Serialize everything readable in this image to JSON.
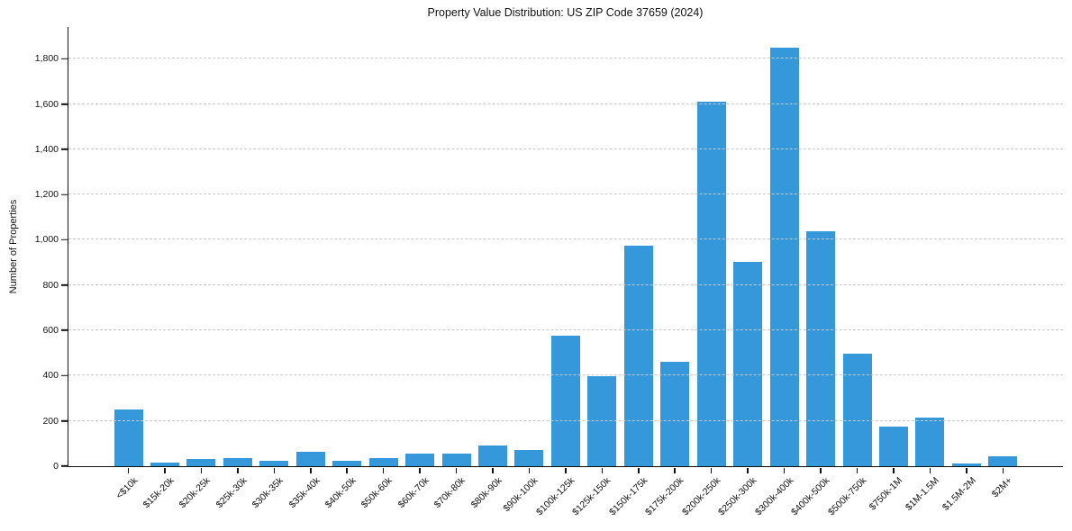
{
  "chart_data": {
    "type": "bar",
    "title": "Property Value Distribution: US ZIP Code 37659 (2024)",
    "xlabel": "",
    "ylabel": "Number of Properties",
    "categories": [
      "<$10k",
      "$15k-20k",
      "$20k-25k",
      "$25k-30k",
      "$30k-35k",
      "$35k-40k",
      "$40k-50k",
      "$50k-60k",
      "$60k-70k",
      "$70k-80k",
      "$80k-90k",
      "$90k-100k",
      "$100k-125k",
      "$125k-150k",
      "$150k-175k",
      "$175k-200k",
      "$200k-250k",
      "$250k-300k",
      "$300k-400k",
      "$400k-500k",
      "$500k-750k",
      "$750k-1M",
      "$1M-1.5M",
      "$1.5M-2M",
      "$2M+"
    ],
    "values": [
      252,
      15,
      30,
      35,
      22,
      62,
      22,
      35,
      55,
      57,
      92,
      70,
      575,
      398,
      975,
      462,
      1610,
      903,
      1848,
      1038,
      497,
      176,
      216,
      13,
      42
    ],
    "yticks": [
      0,
      200,
      400,
      600,
      800,
      1000,
      1200,
      1400,
      1600,
      1800
    ],
    "ylim": [
      0,
      1940
    ],
    "grid": "horizontal-dashed",
    "legend": "none",
    "bar_color": "#3498db",
    "gridline_color": "#c7c7c7",
    "axis_color": "#111111"
  }
}
